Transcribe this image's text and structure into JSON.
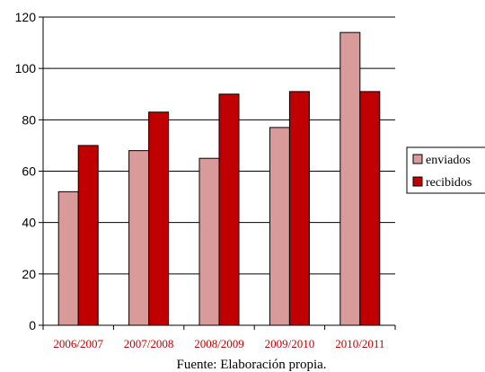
{
  "chart_data": {
    "type": "bar",
    "categories": [
      "2006/2007",
      "2007/2008",
      "2008/2009",
      "2009/2010",
      "2010/2011"
    ],
    "series": [
      {
        "name": "enviados",
        "values": [
          52,
          68,
          65,
          77,
          114
        ],
        "color": "#D99A9A"
      },
      {
        "name": "recibidos",
        "values": [
          70,
          83,
          90,
          91,
          91
        ],
        "color": "#C00000"
      }
    ],
    "ylim": [
      0,
      120
    ],
    "yticks": [
      0,
      20,
      40,
      60,
      80,
      100,
      120
    ],
    "grid": true,
    "legend_position": "right",
    "category_label_color": "#C00000",
    "caption": "Fuente: Elaboración propia."
  }
}
